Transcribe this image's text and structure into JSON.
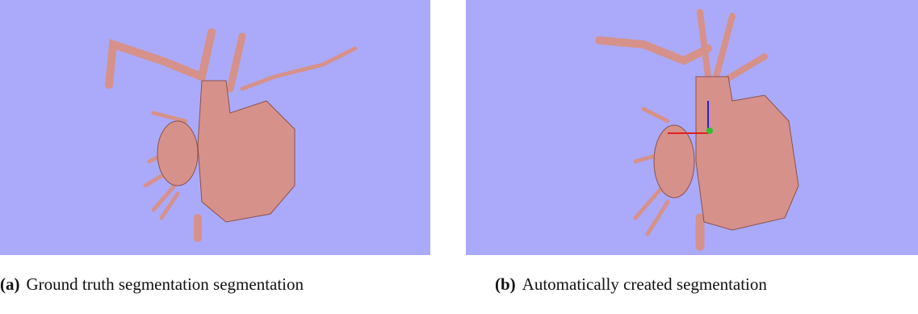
{
  "figures": [
    {
      "label": "(a)",
      "caption": "Ground truth segmentation segmentation"
    },
    {
      "label": "(b)",
      "caption": "Automatically created segmentation"
    }
  ]
}
